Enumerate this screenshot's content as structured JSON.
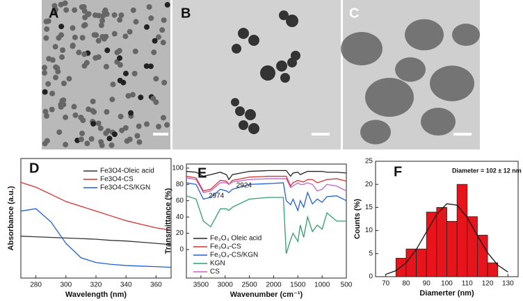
{
  "images": [
    {
      "label": "A"
    },
    {
      "label": "B"
    },
    {
      "label": "C"
    }
  ],
  "chart_data": [
    {
      "type": "line",
      "panel_label": "D",
      "xlabel": "Wavelength (nm)",
      "ylabel": "Absorbance (a.u.)",
      "xlim": [
        270,
        370
      ],
      "xticks": [
        280,
        300,
        320,
        340,
        360
      ],
      "ylim": [
        0,
        1
      ],
      "x": [
        270,
        280,
        290,
        300,
        310,
        320,
        330,
        340,
        350,
        360,
        370
      ],
      "series": [
        {
          "name": "Fe3O4-Oleic acid",
          "color": "#333333",
          "values": [
            0.35,
            0.345,
            0.34,
            0.335,
            0.33,
            0.325,
            0.315,
            0.31,
            0.3,
            0.29,
            0.28
          ]
        },
        {
          "name": "Fe3O4-CS",
          "color": "#d43030",
          "values": [
            0.8,
            0.76,
            0.7,
            0.64,
            0.6,
            0.56,
            0.52,
            0.48,
            0.45,
            0.42,
            0.4
          ]
        },
        {
          "name": "Fe3O4-CS/KGN",
          "color": "#1f5fd6",
          "values": [
            0.56,
            0.58,
            0.47,
            0.29,
            0.17,
            0.13,
            0.115,
            0.105,
            0.1,
            0.095,
            0.09
          ]
        }
      ]
    },
    {
      "type": "line",
      "panel_label": "E",
      "xlabel": "Wavenumber (cm⁻¹)",
      "ylabel": "Transmittance (%)",
      "xlim": [
        3800,
        500
      ],
      "xticks": [
        3500,
        3000,
        2500,
        2000,
        1500,
        1000,
        500
      ],
      "ylim": [
        -35,
        105
      ],
      "yticks": [
        0,
        20,
        40,
        60,
        80,
        100
      ],
      "annotations": [
        "2974",
        "2924"
      ],
      "x": [
        3800,
        3600,
        3450,
        3300,
        3100,
        2974,
        2924,
        2850,
        2500,
        2100,
        1800,
        1740,
        1650,
        1600,
        1500,
        1450,
        1380,
        1300,
        1200,
        1100,
        1000,
        900,
        700,
        500
      ],
      "series": [
        {
          "name": "Fe₃O₄ Oleic acid",
          "color": "#222222",
          "values": [
            96,
            95,
            90,
            92,
            95,
            92,
            86,
            92,
            96,
            97,
            97,
            97,
            90,
            94,
            95,
            92,
            94,
            96,
            96,
            96,
            96,
            95,
            95,
            94
          ]
        },
        {
          "name": "Fe₃O₄-CS",
          "color": "#d43030",
          "values": [
            90,
            88,
            72,
            74,
            85,
            84,
            80,
            85,
            89,
            90,
            90,
            90,
            78,
            82,
            85,
            84,
            83,
            86,
            86,
            82,
            84,
            86,
            87,
            84
          ]
        },
        {
          "name": "Fe₃O₄-CS/KGN",
          "color": "#1f5fd6",
          "values": [
            82,
            80,
            62,
            64,
            74,
            72,
            70,
            74,
            80,
            81,
            82,
            60,
            55,
            62,
            48,
            60,
            52,
            70,
            56,
            62,
            58,
            65,
            66,
            60
          ]
        },
        {
          "name": "KGN",
          "color": "#2f9e6b",
          "values": [
            66,
            62,
            35,
            28,
            50,
            50,
            48,
            52,
            62,
            64,
            64,
            -5,
            12,
            20,
            10,
            30,
            15,
            40,
            22,
            30,
            25,
            45,
            35,
            35
          ]
        },
        {
          "name": "CS",
          "color": "#c65fc6",
          "values": [
            88,
            86,
            70,
            72,
            82,
            82,
            80,
            83,
            86,
            87,
            87,
            87,
            76,
            78,
            82,
            80,
            80,
            82,
            80,
            72,
            74,
            80,
            78,
            72
          ]
        }
      ]
    },
    {
      "type": "histogram",
      "panel_label": "F",
      "xlabel": "Diamerter (nm)",
      "ylabel": "Counts (%)",
      "annotation": "Diameter = 102 ± 12 nm",
      "xlim": [
        65,
        135
      ],
      "xticks": [
        70,
        80,
        90,
        100,
        110,
        120,
        130
      ],
      "ylim": [
        0,
        25
      ],
      "yticks": [
        0,
        5,
        10,
        15,
        20,
        25
      ],
      "color": "#e8141b",
      "bins": [
        75,
        80,
        85,
        90,
        95,
        100,
        105,
        110,
        115,
        120,
        125
      ],
      "values": [
        4,
        6,
        6,
        14,
        15,
        12,
        20,
        13,
        9,
        3
      ],
      "fit": {
        "color": "#111111",
        "x": [
          70,
          75,
          80,
          85,
          90,
          95,
          100,
          105,
          110,
          115,
          120,
          125,
          130
        ],
        "values": [
          0.5,
          1.3,
          3.0,
          5.9,
          9.7,
          13.5,
          15.8,
          15.5,
          12.8,
          8.9,
          5.2,
          2.5,
          1.0
        ]
      }
    }
  ]
}
